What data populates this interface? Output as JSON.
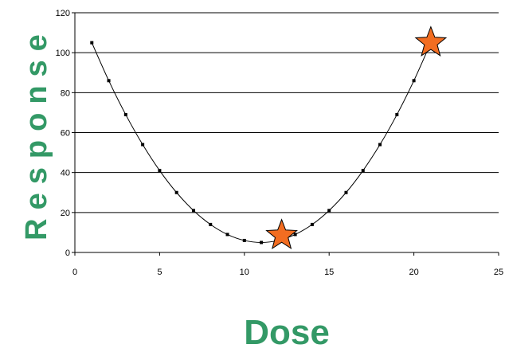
{
  "chart_data": {
    "type": "line",
    "title": "",
    "xlabel": "Dose",
    "ylabel": "Response",
    "xlim": [
      0,
      25
    ],
    "ylim": [
      0,
      120
    ],
    "x_ticks": [
      0,
      5,
      10,
      15,
      20,
      25
    ],
    "y_ticks": [
      0,
      20,
      40,
      60,
      80,
      100,
      120
    ],
    "grid": "horizontal",
    "legend": "none",
    "series": [
      {
        "x": [
          1,
          2,
          3,
          4,
          5,
          6,
          7,
          8,
          9,
          10,
          11,
          12,
          13,
          14,
          15,
          16,
          17,
          18,
          19,
          20,
          21
        ],
        "values": [
          105,
          86,
          69,
          54,
          41,
          30,
          21,
          14,
          9,
          6,
          5,
          6,
          9,
          14,
          21,
          30,
          41,
          54,
          69,
          86,
          105
        ],
        "marker": "square",
        "color": "#000000"
      }
    ],
    "highlights": [
      {
        "x": 12.2,
        "y": 8.5,
        "marker": "star",
        "color": "#f26d21"
      },
      {
        "x": 21,
        "y": 105,
        "marker": "star",
        "color": "#f26d21"
      }
    ],
    "colors": {
      "axis_title": "#339966",
      "gridline": "#000000",
      "star_fill": "#f26d21"
    }
  }
}
